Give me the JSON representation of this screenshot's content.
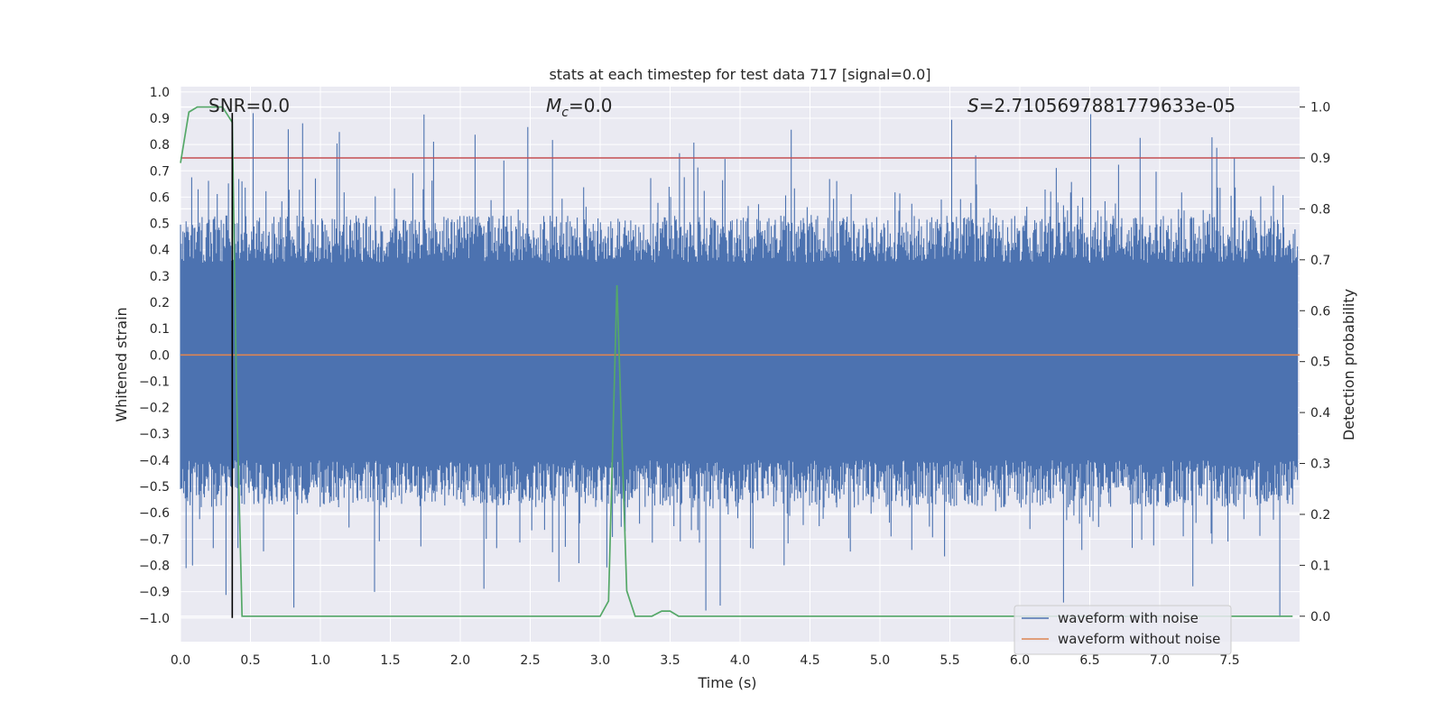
{
  "chart_data": {
    "type": "line",
    "title": "stats at each timestep for test data 717 [signal=0.0]",
    "xlabel": "Time (s)",
    "ylabel": "Whitened strain",
    "y2label": "Detection probability",
    "xlim": [
      0.0,
      8.0
    ],
    "ylim": [
      -1.09,
      1.02
    ],
    "y2lim": [
      -0.05,
      1.04
    ],
    "x_ticks": [
      "0.0",
      "0.5",
      "1.0",
      "1.5",
      "2.0",
      "2.5",
      "3.0",
      "3.5",
      "4.0",
      "4.5",
      "5.0",
      "5.5",
      "6.0",
      "6.5",
      "7.0",
      "7.5"
    ],
    "y_ticks": [
      "1.0",
      "0.9",
      "0.8",
      "0.7",
      "0.6",
      "0.5",
      "0.4",
      "0.3",
      "0.2",
      "0.1",
      "0.0",
      "−0.1",
      "−0.2",
      "−0.3",
      "−0.4",
      "−0.5",
      "−0.6",
      "−0.7",
      "−0.8",
      "−0.9",
      "−1.0"
    ],
    "y2_ticks": [
      "1.0",
      "0.9",
      "0.8",
      "0.7",
      "0.6",
      "0.5",
      "0.4",
      "0.3",
      "0.2",
      "0.1",
      "0.0"
    ],
    "annotations": {
      "snr": "SNR=0.0",
      "mc_symbol": "M",
      "mc_sub": "c",
      "mc_value": "=0.0",
      "s_symbol": "S",
      "s_value": "=2.7105697881779633e-05"
    },
    "legend": {
      "position": "lower right",
      "entries": [
        "waveform with noise",
        "waveform without noise"
      ]
    },
    "colors": {
      "noise": "#4c72b0",
      "clean": "#dd8452",
      "probability": "#55a868",
      "threshold": "#c44e52",
      "marker": "#000000",
      "plot_bg": "#eaeaf2",
      "grid": "#ffffff"
    },
    "noise_envelope": {
      "upper_typical": 0.35,
      "lower_typical": -0.4,
      "max_peak": 0.92,
      "min_peak": -1.0
    },
    "threshold_probability": 0.9,
    "marker_time": 0.37,
    "series": [
      {
        "name": "waveform without noise",
        "x": [
          0.0,
          8.0
        ],
        "values": [
          0.0,
          0.0
        ]
      },
      {
        "name": "detection probability",
        "x": [
          0.0,
          0.06,
          0.12,
          0.25,
          0.3,
          0.37,
          0.4,
          0.44,
          0.5,
          1.0,
          2.0,
          3.0,
          3.06,
          3.12,
          3.19,
          3.25,
          3.37,
          3.44,
          3.5,
          3.56,
          3.62,
          4.0,
          5.0,
          6.0,
          7.0,
          7.95
        ],
        "values": [
          0.89,
          0.99,
          1.0,
          1.0,
          1.0,
          0.97,
          0.45,
          0.0,
          0.0,
          0.0,
          0.0,
          0.0,
          0.03,
          0.65,
          0.05,
          0.0,
          0.0,
          0.01,
          0.01,
          0.0,
          0.0,
          0.0,
          0.0,
          0.0,
          0.0,
          0.0
        ]
      }
    ]
  }
}
